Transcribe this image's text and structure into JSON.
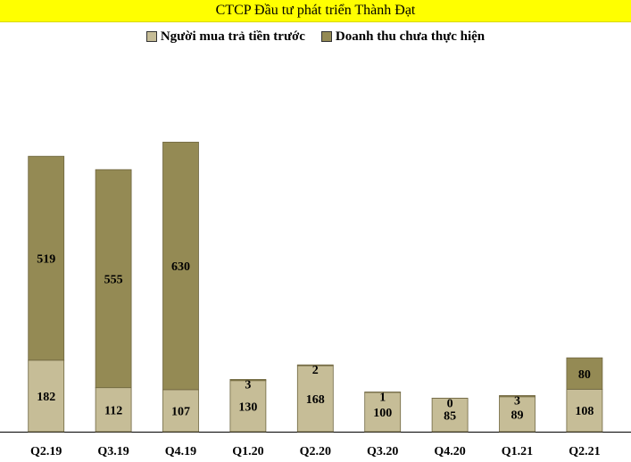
{
  "chart_data": {
    "type": "bar",
    "stacked": true,
    "title": "CTCP Đầu tư phát triển Thành Đạt",
    "categories": [
      "Q2.19",
      "Q3.19",
      "Q4.19",
      "Q1.20",
      "Q2.20",
      "Q3.20",
      "Q4.20",
      "Q1.21",
      "Q2.21"
    ],
    "series": [
      {
        "name": "Người mua trả tiền trước",
        "color": "#c6bd97",
        "values": [
          182,
          112,
          107,
          130,
          168,
          100,
          85,
          89,
          108
        ]
      },
      {
        "name": "Doanh thu chưa thực hiện",
        "color": "#948a54",
        "values": [
          519,
          555,
          630,
          3,
          2,
          1,
          0,
          3,
          80
        ]
      }
    ],
    "legend_position": "top",
    "grid": false,
    "ylim": [
      0,
      800
    ]
  }
}
